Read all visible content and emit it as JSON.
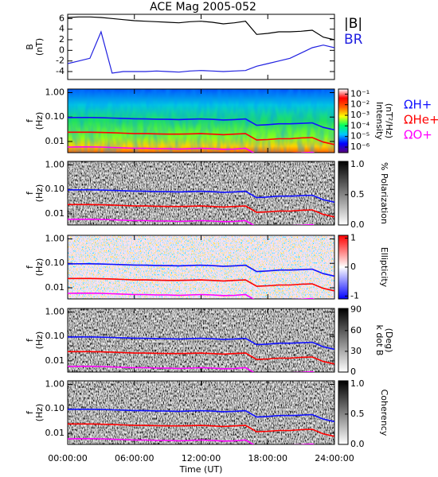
{
  "chart_data": {
    "type": "line",
    "title": "ACE Mag 2005-052",
    "x": [
      0,
      1,
      2,
      3,
      4,
      5,
      6,
      7,
      8,
      9,
      10,
      11,
      12,
      13,
      14,
      15,
      16,
      17,
      18,
      19,
      20,
      21,
      22,
      23,
      24
    ],
    "xlim": [
      0,
      24
    ],
    "xticks": [
      {
        "value": 0,
        "label": "00:00:00"
      },
      {
        "value": 6,
        "label": "06:00:00"
      },
      {
        "value": 12,
        "label": "12:00:00"
      },
      {
        "value": 18,
        "label": "18:00:00"
      },
      {
        "value": 24,
        "label": "24:00:00"
      }
    ],
    "xlabel": "Time (UT)",
    "ylabel": [
      "B",
      "(nT)"
    ],
    "ylim": [
      -5.5,
      6.8
    ],
    "yticks": [
      -4,
      -2,
      0,
      2,
      4,
      6
    ],
    "series": [
      {
        "name": "|B|",
        "color": "#000000",
        "values": [
          6.2,
          6.3,
          6.3,
          6.2,
          6.0,
          5.8,
          5.6,
          5.5,
          5.4,
          5.3,
          5.2,
          5.4,
          5.5,
          5.3,
          5.0,
          5.2,
          5.5,
          3.0,
          3.2,
          3.5,
          3.5,
          3.6,
          3.8,
          2.5,
          2.0
        ]
      },
      {
        "name": "BR",
        "color": "#2020e0",
        "values": [
          -2.5,
          -2.0,
          -1.5,
          3.5,
          -4.3,
          -4.0,
          -4.0,
          -4.0,
          -3.9,
          -4.0,
          -4.1,
          -3.9,
          -3.8,
          -3.9,
          -4.0,
          -3.9,
          -3.8,
          -3.0,
          -2.5,
          -2.0,
          -1.5,
          -0.5,
          0.5,
          1.0,
          0.5
        ]
      }
    ],
    "spectra": {
      "ylabel": [
        "f",
        "(Hz)"
      ],
      "ylim": [
        0.0035,
        1.4
      ],
      "log": true,
      "yticks": [
        {
          "value": 0.01,
          "label": "0.01"
        },
        {
          "value": 0.1,
          "label": "0.10"
        },
        {
          "value": 1,
          "label": "1.00"
        }
      ],
      "gyro_series": [
        {
          "name": "ΩH+",
          "color": "#1010ff",
          "values": [
            0.095,
            0.096,
            0.096,
            0.094,
            0.091,
            0.088,
            0.085,
            0.084,
            0.082,
            0.081,
            0.079,
            0.082,
            0.084,
            0.081,
            0.076,
            0.079,
            0.084,
            0.046,
            0.049,
            0.053,
            0.053,
            0.055,
            0.058,
            0.038,
            0.03
          ]
        },
        {
          "name": "ΩHe+",
          "color": "#ff0000",
          "values": [
            0.024,
            0.024,
            0.024,
            0.0235,
            0.023,
            0.022,
            0.021,
            0.021,
            0.0205,
            0.02,
            0.02,
            0.0205,
            0.021,
            0.02,
            0.019,
            0.02,
            0.021,
            0.0115,
            0.012,
            0.013,
            0.013,
            0.014,
            0.0145,
            0.0095,
            0.0075
          ]
        },
        {
          "name": "ΩO+",
          "color": "#ff00ff",
          "values": [
            0.0059,
            0.006,
            0.006,
            0.0059,
            0.0057,
            0.0055,
            0.0053,
            0.0053,
            0.0051,
            0.0051,
            0.0049,
            0.0051,
            0.0053,
            0.0051,
            0.0048,
            0.0049,
            0.0053,
            0.0029,
            0.0031,
            0.0033,
            0.0033,
            0.0034,
            0.0036,
            0.0024,
            0.0019
          ]
        }
      ],
      "panels": [
        {
          "style": "intensity",
          "colorbar": {
            "label": [
              "Intensity",
              "(nT²/Hz)"
            ],
            "log": true,
            "lim": [
              3e-07,
              0.3
            ],
            "colors": [
              "#5a007a",
              "#0000ff",
              "#00c8ff",
              "#00ff60",
              "#ffff00",
              "#ff6000",
              "#ff0000",
              "#ffffff"
            ],
            "ticks": [
              {
                "value": 0.1,
                "label": "10⁻¹"
              },
              {
                "value": 0.01,
                "label": "10⁻²"
              },
              {
                "value": 0.001,
                "label": "10⁻³"
              },
              {
                "value": 0.0001,
                "label": "10⁻⁴"
              },
              {
                "value": 1e-05,
                "label": "10⁻⁵"
              },
              {
                "value": 1e-06,
                "label": "10⁻⁶"
              }
            ]
          }
        },
        {
          "style": "gray",
          "colorbar": {
            "label": [
              "% Polarization"
            ],
            "lim": [
              0,
              1.05
            ],
            "colors": [
              "#ffffff",
              "#000000"
            ],
            "ticks": [
              {
                "value": 0,
                "label": "0.0"
              },
              {
                "value": 0.5,
                "label": "0.5"
              },
              {
                "value": 1,
                "label": "1.0"
              }
            ]
          }
        },
        {
          "style": "ellipticity",
          "colorbar": {
            "label": [
              "Ellipticity"
            ],
            "lim": [
              -1.1,
              1.1
            ],
            "colors": [
              "#0000ff",
              "#ffffff",
              "#ff0000"
            ],
            "ticks": [
              -1,
              0,
              1
            ]
          }
        },
        {
          "style": "gray",
          "colorbar": {
            "label": [
              "k dot B",
              "(Deg)"
            ],
            "lim": [
              0,
              92
            ],
            "colors": [
              "#ffffff",
              "#000000"
            ],
            "ticks": [
              0,
              30,
              60,
              90
            ]
          }
        },
        {
          "style": "gray",
          "colorbar": {
            "label": [
              "Coherency"
            ],
            "lim": [
              0,
              1.05
            ],
            "colors": [
              "#ffffff",
              "#000000"
            ],
            "ticks": [
              {
                "value": 0,
                "label": "0.0"
              },
              {
                "value": 0.5,
                "label": "0.5"
              },
              {
                "value": 1,
                "label": "1.0"
              }
            ]
          }
        }
      ]
    }
  }
}
